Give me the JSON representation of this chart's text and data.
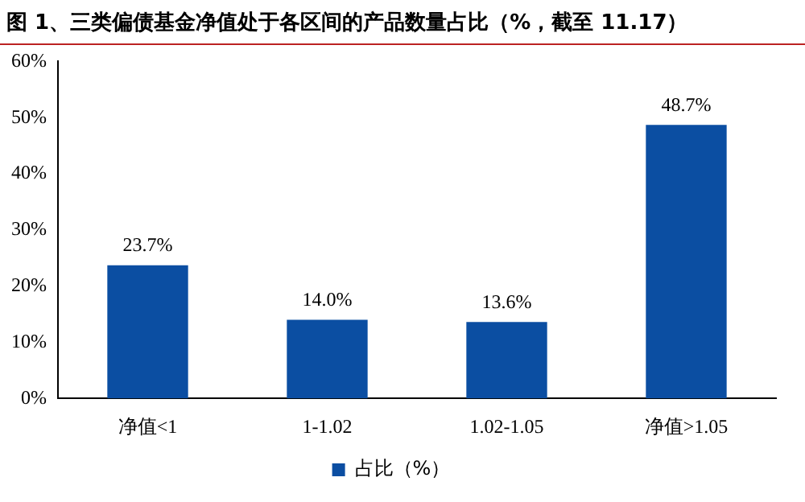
{
  "chart_data": {
    "type": "bar",
    "title": "图 1、三类偏债基金净值处于各区间的产品数量占比（%，截至 11.17）",
    "categories": [
      "净值<1",
      "1-1.02",
      "1.02-1.05",
      "净值>1.05"
    ],
    "series": [
      {
        "name": "占比（%）",
        "color": "#0b4ea2",
        "values": [
          23.7,
          14.0,
          13.6,
          48.7
        ]
      }
    ],
    "value_labels": [
      "23.7%",
      "14.0%",
      "13.6%",
      "48.7%"
    ],
    "ylim": [
      0,
      60
    ],
    "yticks": [
      {
        "value": 0,
        "label": "0%"
      },
      {
        "value": 10,
        "label": "10%"
      },
      {
        "value": 20,
        "label": "20%"
      },
      {
        "value": 30,
        "label": "30%"
      },
      {
        "value": 40,
        "label": "40%"
      },
      {
        "value": 50,
        "label": "50%"
      },
      {
        "value": 60,
        "label": "60%"
      }
    ],
    "grid": false,
    "legend": "bottom"
  }
}
